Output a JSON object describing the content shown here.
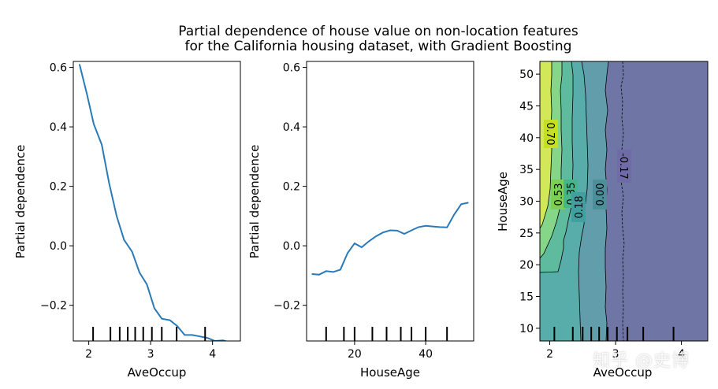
{
  "figure_title_line1": "Partial dependence of house value on non-location features",
  "figure_title_line2": "for the California housing dataset, with Gradient Boosting",
  "watermark": "知乎 @史博",
  "colors": {
    "line": "#2a7ab8",
    "frame": "#000000",
    "contour_line": "#000000"
  },
  "chart_data": [
    {
      "type": "line",
      "title": "",
      "xlabel": "AveOccup",
      "ylabel": "Partial dependence",
      "xlim": [
        1.75,
        4.45
      ],
      "ylim": [
        -0.32,
        0.62
      ],
      "xticks": [
        2,
        3,
        4
      ],
      "yticks": [
        -0.2,
        0.0,
        0.2,
        0.4,
        0.6
      ],
      "ytick_labels": [
        "−0.2",
        "0.0",
        "0.2",
        "0.4",
        "0.6"
      ],
      "x": [
        1.85,
        1.97,
        2.08,
        2.21,
        2.33,
        2.45,
        2.57,
        2.7,
        2.82,
        2.94,
        3.06,
        3.18,
        3.31,
        3.43,
        3.55,
        3.67,
        3.8,
        3.92,
        4.04,
        4.17,
        4.29
      ],
      "y": [
        0.61,
        0.51,
        0.41,
        0.34,
        0.21,
        0.1,
        0.02,
        -0.02,
        -0.09,
        -0.13,
        -0.21,
        -0.245,
        -0.25,
        -0.27,
        -0.3,
        -0.3,
        -0.305,
        -0.31,
        -0.32,
        -0.318,
        -0.325
      ],
      "deciles": [
        2.07,
        2.35,
        2.5,
        2.63,
        2.75,
        2.88,
        3.02,
        3.18,
        3.42,
        3.88
      ]
    },
    {
      "type": "line",
      "title": "",
      "xlabel": "HouseAge",
      "ylabel": "Partial dependence",
      "xlim": [
        6.5,
        53.5
      ],
      "ylim": [
        -0.32,
        0.62
      ],
      "xticks": [
        20,
        40
      ],
      "yticks": [
        -0.2,
        0.0,
        0.2,
        0.4,
        0.6
      ],
      "ytick_labels": [
        "−0.2",
        "0.0",
        "0.2",
        "0.4",
        "0.6"
      ],
      "x": [
        8,
        10,
        12,
        14,
        16,
        18,
        20,
        22,
        24,
        26,
        28,
        30,
        32,
        34,
        36,
        38,
        40,
        42,
        44,
        46,
        48,
        50,
        52
      ],
      "y": [
        -0.095,
        -0.097,
        -0.085,
        -0.088,
        -0.08,
        -0.025,
        0.008,
        -0.005,
        0.015,
        0.032,
        0.045,
        0.052,
        0.051,
        0.04,
        0.052,
        0.063,
        0.067,
        0.065,
        0.063,
        0.062,
        0.105,
        0.14,
        0.145
      ],
      "deciles": [
        12,
        17,
        20,
        25,
        29,
        33,
        36,
        40,
        46
      ]
    },
    {
      "type": "heatmap",
      "title": "",
      "xlabel": "AveOccup",
      "ylabel": "HouseAge",
      "xlim": [
        1.85,
        4.4
      ],
      "ylim": [
        8,
        52
      ],
      "xticks": [
        2,
        3,
        4
      ],
      "yticks": [
        10,
        15,
        20,
        25,
        30,
        35,
        40,
        45,
        50
      ],
      "contour_levels": [
        0.7,
        0.53,
        0.35,
        0.18,
        0.0,
        -0.17
      ],
      "contour_label_texts": [
        "0.70",
        "0.53",
        "0.35",
        "0.18",
        "0.00",
        "-0.17"
      ],
      "deciles_x": [
        2.07,
        2.35,
        2.5,
        2.63,
        2.75,
        2.88,
        3.02,
        3.18,
        3.42,
        3.88
      ]
    }
  ]
}
